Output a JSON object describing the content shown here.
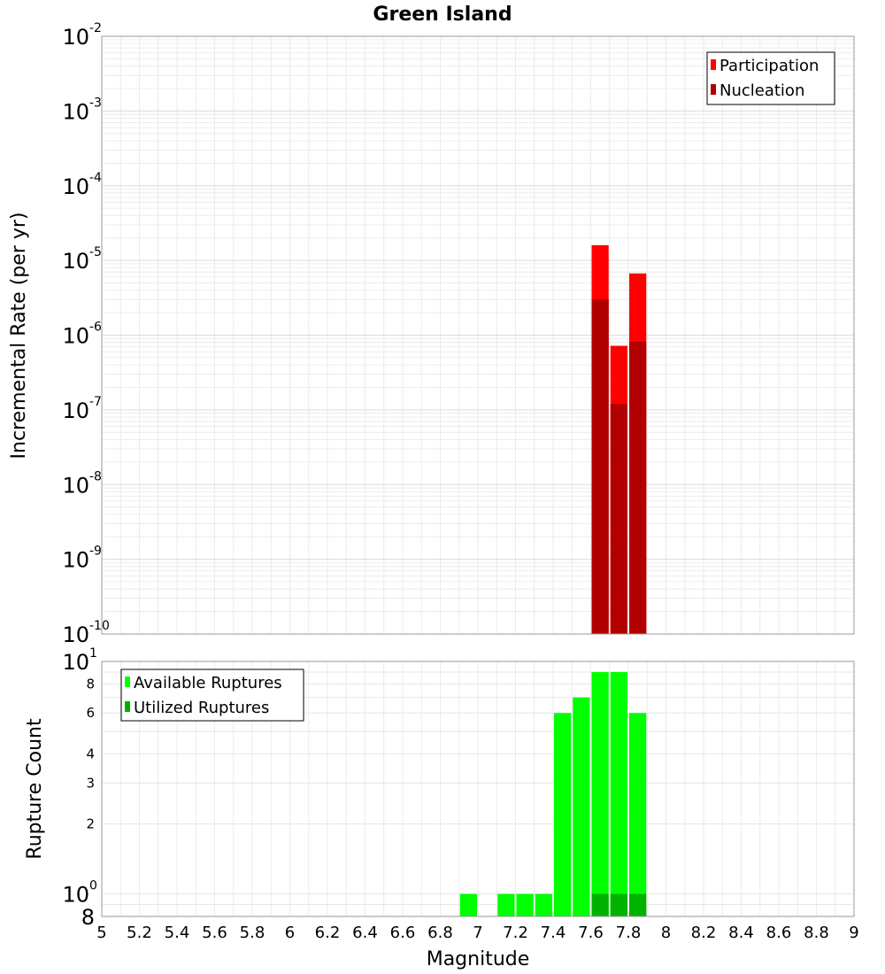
{
  "chart_data": [
    {
      "type": "bar",
      "title": "Green Island",
      "xlabel": "",
      "ylabel": "Incremental Rate (per yr)",
      "yscale": "log",
      "xlim": [
        5,
        9
      ],
      "ylim": [
        1e-10,
        0.01
      ],
      "grid": true,
      "legend_position": "top-right",
      "y_tick_labels": [
        {
          "base": "10",
          "exp": "-2"
        },
        {
          "base": "10",
          "exp": "-3"
        },
        {
          "base": "10",
          "exp": "-4"
        },
        {
          "base": "10",
          "exp": "-5"
        },
        {
          "base": "10",
          "exp": "-6"
        },
        {
          "base": "10",
          "exp": "-7"
        },
        {
          "base": "10",
          "exp": "-8"
        },
        {
          "base": "10",
          "exp": "-9"
        },
        {
          "base": "10",
          "exp": "-10"
        }
      ],
      "bin_width": 0.1,
      "series": [
        {
          "name": "Participation",
          "color": "#ff0000",
          "x": [
            7.65,
            7.75,
            7.85
          ],
          "values": [
            1.6e-05,
            7.2e-07,
            6.7e-06
          ]
        },
        {
          "name": "Nucleation",
          "color": "#b20000",
          "x": [
            7.65,
            7.75,
            7.85
          ],
          "values": [
            3e-06,
            1.2e-07,
            8.2e-07
          ]
        }
      ]
    },
    {
      "type": "bar",
      "xlabel": "Magnitude",
      "ylabel": "Rupture Count",
      "yscale": "log",
      "xlim": [
        5,
        9
      ],
      "ylim": [
        0.8,
        10
      ],
      "grid": true,
      "legend_position": "top-left",
      "x_tick_labels": [
        "5",
        "5.2",
        "5.4",
        "5.6",
        "5.8",
        "6",
        "6.2",
        "6.4",
        "6.6",
        "6.8",
        "7",
        "7.2",
        "7.4",
        "7.6",
        "7.8",
        "8",
        "8.2",
        "8.4",
        "8.6",
        "8.8",
        "9"
      ],
      "y_tick_labels": [
        {
          "value": 10,
          "base": "10",
          "exp": "1",
          "major": true
        },
        {
          "value": 8,
          "label": "8"
        },
        {
          "value": 6,
          "label": "6"
        },
        {
          "value": 4,
          "label": "4"
        },
        {
          "value": 3,
          "label": "3"
        },
        {
          "value": 2,
          "label": "2"
        },
        {
          "value": 1,
          "base": "10",
          "exp": "0",
          "major": true
        },
        {
          "value": 0.8,
          "label": "8",
          "major_size": true
        }
      ],
      "bin_width": 0.1,
      "series": [
        {
          "name": "Available Ruptures",
          "color": "#00ff00",
          "x": [
            6.95,
            7.15,
            7.25,
            7.35,
            7.45,
            7.55,
            7.65,
            7.75,
            7.85
          ],
          "values": [
            1,
            1,
            1,
            1,
            6,
            7,
            9,
            9,
            6
          ]
        },
        {
          "name": "Utilized Ruptures",
          "color": "#00b200",
          "x": [
            7.65,
            7.75,
            7.85
          ],
          "values": [
            1,
            1,
            1
          ]
        }
      ]
    }
  ]
}
